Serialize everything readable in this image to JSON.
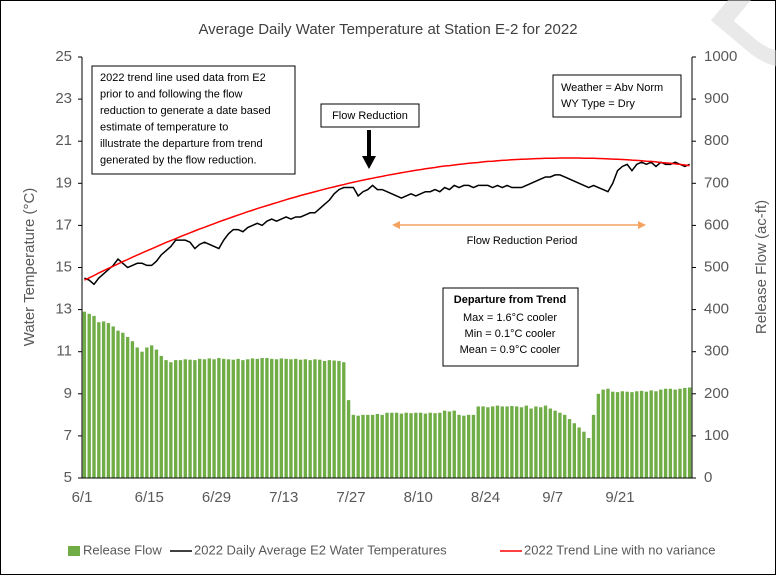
{
  "chart_data": {
    "type": "combo",
    "title": "Average Daily Water Temperature at Station E-2 for 2022",
    "y_label": "Water Temperature (°C)",
    "y2_label": "Release Flow (ac-ft)",
    "categories": [
      "6/1",
      null,
      null,
      null,
      null,
      null,
      null,
      null,
      null,
      null,
      null,
      null,
      null,
      null,
      "6/15",
      null,
      null,
      null,
      null,
      null,
      null,
      null,
      null,
      null,
      null,
      null,
      null,
      null,
      "6/29",
      null,
      null,
      null,
      null,
      null,
      null,
      null,
      null,
      null,
      null,
      null,
      null,
      null,
      "7/13",
      null,
      null,
      null,
      null,
      null,
      null,
      null,
      null,
      null,
      null,
      null,
      null,
      null,
      "7/27",
      null,
      null,
      null,
      null,
      null,
      null,
      null,
      null,
      null,
      null,
      null,
      null,
      null,
      "8/10",
      null,
      null,
      null,
      null,
      null,
      null,
      null,
      null,
      null,
      null,
      null,
      null,
      null,
      "8/24",
      null,
      null,
      null,
      null,
      null,
      null,
      null,
      null,
      null,
      null,
      null,
      null,
      null,
      "9/7",
      null,
      null,
      null,
      null,
      null,
      null,
      null,
      null,
      null,
      null,
      null,
      null,
      null,
      "9/21",
      null,
      null,
      null,
      null,
      null,
      null,
      null,
      null,
      null,
      null,
      null,
      null,
      null,
      null
    ],
    "ylim": [
      5,
      25
    ],
    "yticks": [
      5,
      7,
      9,
      11,
      13,
      15,
      17,
      19,
      21,
      23,
      25
    ],
    "y2lim": [
      0,
      1000
    ],
    "y2ticks": [
      0,
      100,
      200,
      300,
      400,
      500,
      600,
      700,
      800,
      900,
      1000
    ],
    "series": [
      {
        "name": "Release Flow",
        "type": "bar",
        "axis": "y2",
        "color": "#70ad47",
        "values": [
          395,
          390,
          385,
          370,
          372,
          368,
          360,
          350,
          345,
          335,
          325,
          310,
          300,
          310,
          315,
          305,
          290,
          280,
          275,
          280,
          280,
          282,
          281,
          280,
          283,
          282,
          284,
          282,
          285,
          283,
          282,
          281,
          283,
          280,
          282,
          284,
          283,
          285,
          285,
          283,
          282,
          284,
          283,
          282,
          283,
          281,
          282,
          280,
          282,
          281,
          278,
          280,
          279,
          278,
          275,
          185,
          150,
          148,
          150,
          150,
          150,
          152,
          150,
          155,
          155,
          155,
          153,
          155,
          154,
          155,
          155,
          153,
          155,
          154,
          155,
          160,
          158,
          160,
          150,
          148,
          150,
          150,
          170,
          170,
          168,
          170,
          172,
          170,
          170,
          171,
          170,
          168,
          172,
          165,
          170,
          168,
          172,
          165,
          160,
          155,
          150,
          140,
          130,
          120,
          110,
          95,
          150,
          200,
          210,
          212,
          205,
          204,
          206,
          205,
          204,
          206,
          207,
          205,
          208,
          206,
          210,
          212,
          212,
          210,
          212,
          214,
          215
        ]
      },
      {
        "name": "2022 Daily Average E2 Water Temperatures",
        "type": "line",
        "color": "#000000",
        "values": [
          14.5,
          14.4,
          14.2,
          14.5,
          14.7,
          14.9,
          15.1,
          15.4,
          15.2,
          15.0,
          15.1,
          15.2,
          15.2,
          15.1,
          15.1,
          15.3,
          15.6,
          15.8,
          16.0,
          16.3,
          16.3,
          16.3,
          16.2,
          15.9,
          16.1,
          16.2,
          16.1,
          16.0,
          15.9,
          16.3,
          16.6,
          16.8,
          16.8,
          16.7,
          16.9,
          17.0,
          17.1,
          17.0,
          17.2,
          17.3,
          17.2,
          17.3,
          17.4,
          17.3,
          17.4,
          17.4,
          17.5,
          17.6,
          17.6,
          17.8,
          18.0,
          18.2,
          18.5,
          18.7,
          18.8,
          18.8,
          18.8,
          18.4,
          18.6,
          18.7,
          18.9,
          18.7,
          18.7,
          18.6,
          18.5,
          18.4,
          18.3,
          18.4,
          18.5,
          18.4,
          18.5,
          18.6,
          18.6,
          18.7,
          18.6,
          18.8,
          18.7,
          18.9,
          18.8,
          18.9,
          18.9,
          18.8,
          18.9,
          18.9,
          18.9,
          18.8,
          18.9,
          18.8,
          18.9,
          18.8,
          18.8,
          18.8,
          18.9,
          19.0,
          19.1,
          19.2,
          19.3,
          19.3,
          19.4,
          19.4,
          19.3,
          19.2,
          19.1,
          19.0,
          18.9,
          18.8,
          18.9,
          18.8,
          18.7,
          18.6,
          19.0,
          19.6,
          19.8,
          19.9,
          19.6,
          19.9,
          20.0,
          19.9,
          20.0,
          19.8,
          20.0,
          19.9,
          19.9,
          20.0,
          19.9,
          19.8,
          19.9
        ]
      },
      {
        "name": "2022 Trend Line with no variance",
        "type": "line",
        "color": "#ff0000",
        "values": [
          14.4,
          14.51,
          14.62,
          14.74,
          14.85,
          14.96,
          15.06,
          15.17,
          15.28,
          15.38,
          15.49,
          15.59,
          15.69,
          15.79,
          15.89,
          15.99,
          16.09,
          16.19,
          16.28,
          16.37,
          16.47,
          16.56,
          16.65,
          16.74,
          16.83,
          16.91,
          17.0,
          17.08,
          17.17,
          17.25,
          17.33,
          17.41,
          17.49,
          17.57,
          17.65,
          17.72,
          17.8,
          17.87,
          17.94,
          18.01,
          18.08,
          18.15,
          18.22,
          18.29,
          18.35,
          18.42,
          18.48,
          18.54,
          18.6,
          18.66,
          18.72,
          18.78,
          18.83,
          18.89,
          18.94,
          19.0,
          19.05,
          19.1,
          19.15,
          19.2,
          19.24,
          19.29,
          19.33,
          19.38,
          19.42,
          19.46,
          19.5,
          19.54,
          19.58,
          19.62,
          19.65,
          19.69,
          19.72,
          19.75,
          19.79,
          19.82,
          19.84,
          19.87,
          19.9,
          19.92,
          19.95,
          19.97,
          19.99,
          20.02,
          20.04,
          20.05,
          20.07,
          20.09,
          20.1,
          20.12,
          20.13,
          20.14,
          20.15,
          20.16,
          20.17,
          20.18,
          20.19,
          20.19,
          20.19,
          20.2,
          20.2,
          20.2,
          20.2,
          20.2,
          20.19,
          20.19,
          20.19,
          20.18,
          20.17,
          20.16,
          20.15,
          20.14,
          20.13,
          20.12,
          20.1,
          20.09,
          20.07,
          20.05,
          20.04,
          20.02,
          19.99,
          19.97,
          19.95,
          19.92,
          19.9,
          19.87,
          19.84
        ]
      }
    ],
    "annotations": {
      "trend_note": [
        "2022 trend line used data from E2",
        "prior to and following the flow",
        "reduction to generate a date based",
        "estimate of temperature to",
        "illustrate the departure from trend",
        "generated by the  flow reduction."
      ],
      "conditions": [
        "Weather = Abv Norm",
        "WY Type = Dry"
      ],
      "flow_reduction": "Flow Reduction",
      "period": "Flow Reduction Period",
      "departure_title": "Departure from Trend",
      "departure": [
        "Max = 1.6°C cooler",
        "Min = 0.1°C cooler",
        "Mean = 0.9°C cooler"
      ],
      "watermark": "DRAFT"
    }
  }
}
